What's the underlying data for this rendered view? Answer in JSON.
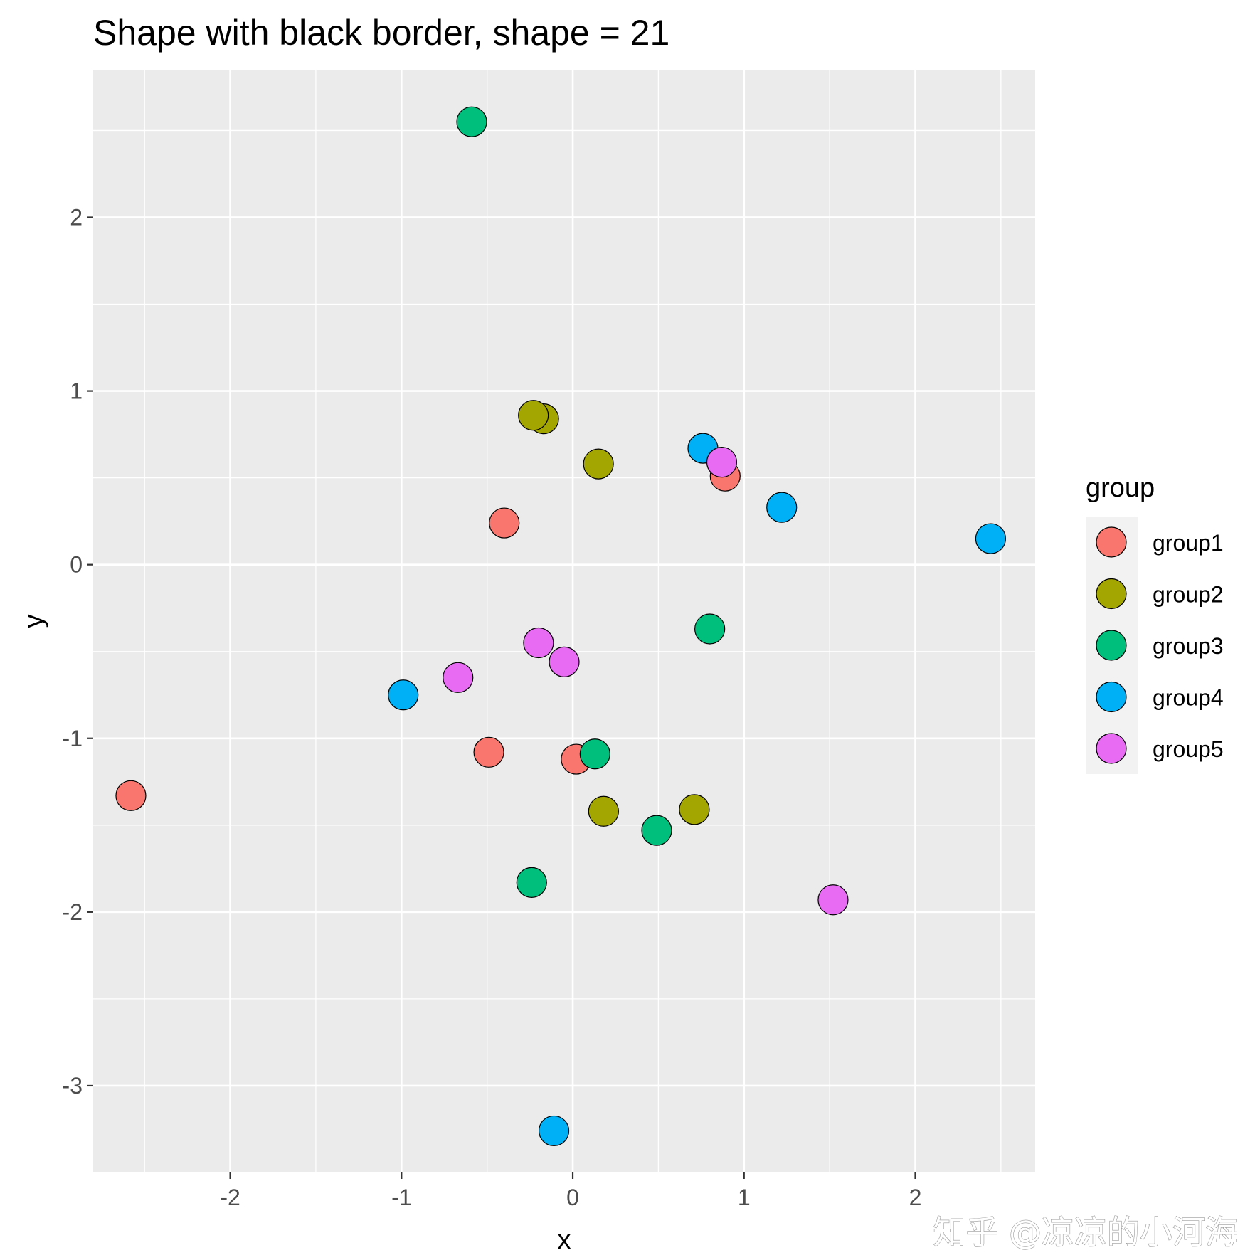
{
  "watermark": "知乎 @凉凉的小河海",
  "chart_data": {
    "type": "scatter",
    "title": "Shape with black border, shape = 21",
    "xlabel": "x",
    "ylabel": "y",
    "xlim": [
      -2.8,
      2.7
    ],
    "ylim": [
      -3.5,
      2.85
    ],
    "x_ticks": [
      -2,
      -1,
      0,
      1,
      2
    ],
    "y_ticks": [
      -3,
      -2,
      -1,
      0,
      1,
      2
    ],
    "x_tick_labels": [
      "-2",
      "-1",
      "0",
      "1",
      "2"
    ],
    "y_tick_labels": [
      "-3",
      "-2",
      "-1",
      "0",
      "1",
      "2"
    ],
    "grid": true,
    "legend": {
      "title": "group",
      "position": "right",
      "entries": [
        "group1",
        "group2",
        "group3",
        "group4",
        "group5"
      ]
    },
    "colors": {
      "group1": "#F8766D",
      "group2": "#A3A500",
      "group3": "#00BF7D",
      "group4": "#00B0F6",
      "group5": "#E76BF3"
    },
    "marker_border": "#000000",
    "series": [
      {
        "name": "group1",
        "points": [
          [
            -2.58,
            -1.33
          ],
          [
            -0.4,
            0.24
          ],
          [
            -0.49,
            -1.08
          ],
          [
            0.02,
            -1.12
          ],
          [
            0.89,
            0.51
          ]
        ]
      },
      {
        "name": "group2",
        "points": [
          [
            -0.17,
            0.84
          ],
          [
            -0.23,
            0.86
          ],
          [
            0.15,
            0.58
          ],
          [
            0.18,
            -1.42
          ],
          [
            0.71,
            -1.41
          ]
        ]
      },
      {
        "name": "group3",
        "points": [
          [
            -0.59,
            2.55
          ],
          [
            0.8,
            -0.37
          ],
          [
            0.13,
            -1.09
          ],
          [
            0.49,
            -1.53
          ],
          [
            -0.24,
            -1.83
          ]
        ]
      },
      {
        "name": "group4",
        "points": [
          [
            0.76,
            0.67
          ],
          [
            1.22,
            0.33
          ],
          [
            2.44,
            0.15
          ],
          [
            -0.99,
            -0.75
          ],
          [
            -0.11,
            -3.26
          ]
        ]
      },
      {
        "name": "group5",
        "points": [
          [
            0.87,
            0.59
          ],
          [
            -0.2,
            -0.45
          ],
          [
            -0.05,
            -0.56
          ],
          [
            -0.67,
            -0.65
          ],
          [
            1.52,
            -1.93
          ]
        ]
      }
    ]
  }
}
